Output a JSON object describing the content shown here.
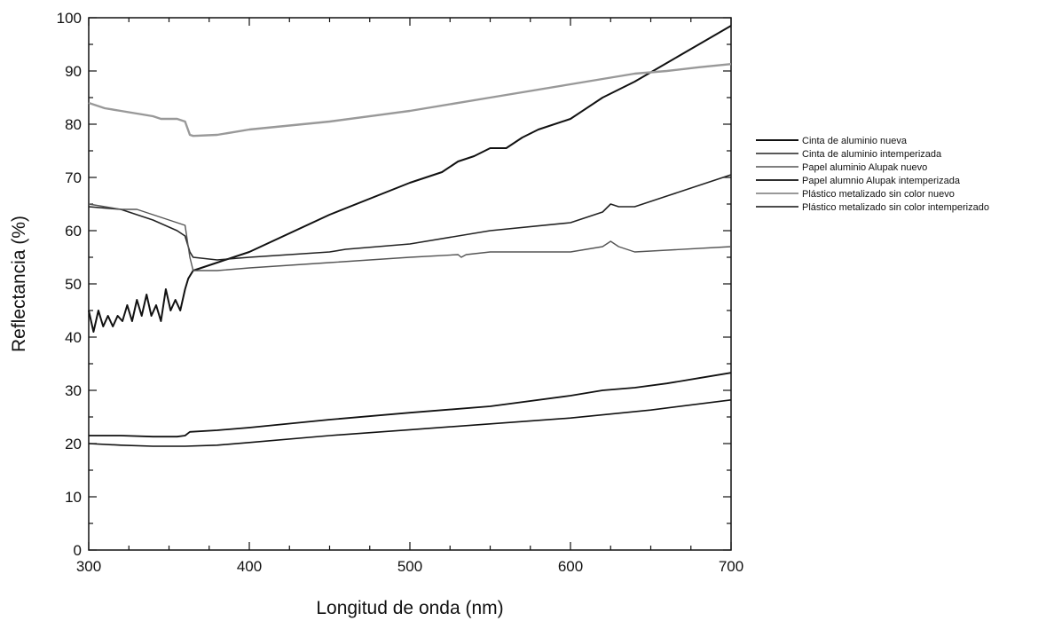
{
  "chart_data": {
    "type": "line",
    "title": "",
    "xlabel": "Longitud de onda (nm)",
    "ylabel": "Reflectancia (%)",
    "xlim": [
      300,
      700
    ],
    "ylim": [
      0,
      100
    ],
    "xticks": [
      300,
      400,
      500,
      600,
      700
    ],
    "yticks": [
      0,
      10,
      20,
      30,
      40,
      50,
      60,
      70,
      80,
      90,
      100
    ],
    "grid": false,
    "legend_position": "right",
    "series": [
      {
        "name": "Cinta de aluminio nueva",
        "color": "#111111",
        "style": "solid",
        "width": 2,
        "x": [
          300,
          303,
          306,
          309,
          312,
          315,
          318,
          321,
          324,
          327,
          330,
          333,
          336,
          339,
          342,
          345,
          348,
          351,
          354,
          357,
          360,
          362,
          365,
          380,
          400,
          450,
          500,
          520,
          530,
          540,
          550,
          560,
          570,
          580,
          600,
          620,
          640,
          660,
          680,
          700
        ],
        "y": [
          45,
          41,
          45,
          42,
          44,
          42,
          44,
          43,
          46,
          43,
          47,
          44,
          48,
          44,
          46,
          43,
          49,
          45,
          47,
          45,
          49,
          51,
          52.5,
          54,
          56,
          63,
          69,
          71,
          73,
          74,
          75.5,
          75.5,
          77.5,
          79,
          81,
          85,
          88,
          91.5,
          95,
          98.5
        ]
      },
      {
        "name": "Cinta de aluminio intemperizada",
        "color": "#222222",
        "style": "solid",
        "width": 1.6,
        "x": [
          300,
          320,
          340,
          355,
          360,
          363,
          365,
          380,
          400,
          450,
          460,
          500,
          550,
          600,
          620,
          625,
          630,
          640,
          660,
          680,
          700
        ],
        "y": [
          64.5,
          64,
          62,
          60,
          59,
          56,
          55,
          54.5,
          55,
          56,
          56.5,
          57.5,
          60,
          61.5,
          63.5,
          65,
          64.5,
          64.5,
          66.5,
          68.5,
          70.5
        ]
      },
      {
        "name": "Papel aluminio Alupak nuevo",
        "color": "#555555",
        "style": "solid",
        "width": 1.4,
        "x": [
          300,
          320,
          330,
          340,
          355,
          360,
          363,
          365,
          380,
          400,
          450,
          500,
          530,
          532,
          535,
          550,
          600,
          620,
          625,
          630,
          640,
          700
        ],
        "y": [
          65,
          64,
          64,
          63,
          61.5,
          61,
          55,
          52.5,
          52.5,
          53,
          54,
          55,
          55.5,
          55,
          55.5,
          56,
          56,
          57,
          58,
          57,
          56,
          57
        ]
      },
      {
        "name": "Papel alumnio Alupak intemperizada",
        "color": "#111111",
        "style": "solid",
        "width": 1.8,
        "x": [
          300,
          320,
          340,
          355,
          360,
          363,
          380,
          400,
          450,
          500,
          550,
          600,
          620,
          640,
          660,
          680,
          700
        ],
        "y": [
          21.5,
          21.5,
          21.3,
          21.3,
          21.5,
          22.2,
          22.5,
          23,
          24.5,
          25.8,
          27,
          29,
          30,
          30.5,
          31.3,
          32.3,
          33.3
        ]
      },
      {
        "name": "Plástico metalizado sin color nuevo",
        "color": "#999999",
        "style": "solid",
        "width": 2.4,
        "x": [
          300,
          310,
          320,
          330,
          340,
          345,
          355,
          360,
          363,
          365,
          380,
          400,
          450,
          500,
          550,
          600,
          620,
          640,
          660,
          680,
          700
        ],
        "y": [
          84,
          83,
          82.5,
          82,
          81.5,
          81,
          81,
          80.5,
          78,
          77.8,
          78,
          79,
          80.5,
          82.5,
          85,
          87.5,
          88.5,
          89.5,
          90,
          90.7,
          91.3
        ]
      },
      {
        "name": "Plástico metalizado sin color intemperizado",
        "color": "#111111",
        "style": "solid",
        "width": 1.6,
        "x": [
          300,
          320,
          340,
          360,
          380,
          400,
          450,
          500,
          550,
          600,
          650,
          700
        ],
        "y": [
          20,
          19.7,
          19.5,
          19.5,
          19.7,
          20.2,
          21.5,
          22.6,
          23.7,
          24.8,
          26.3,
          28.2
        ]
      }
    ]
  }
}
